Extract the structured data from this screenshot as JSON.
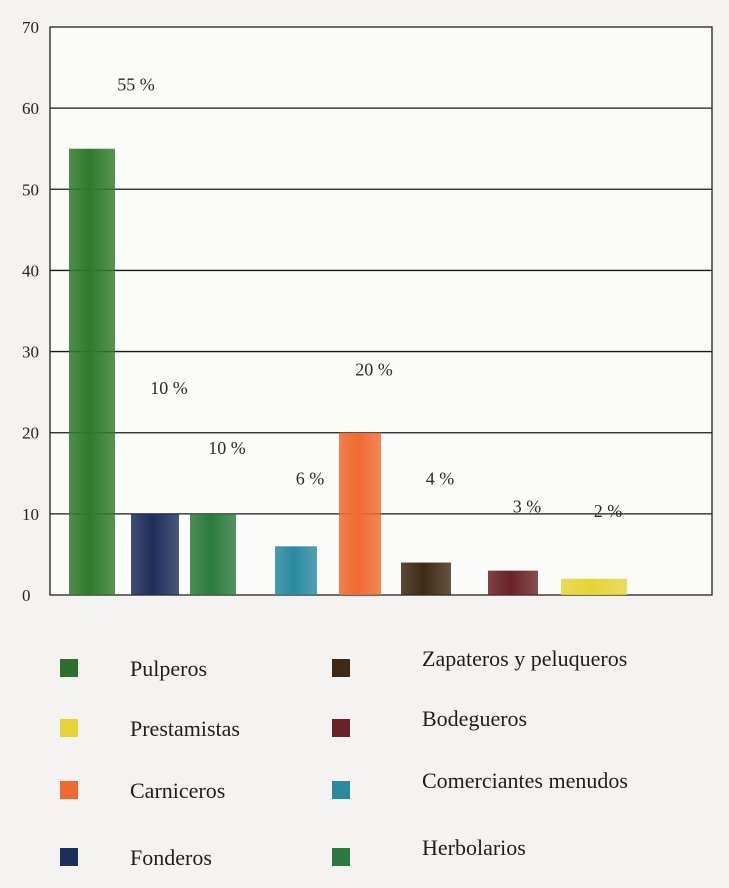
{
  "chart_data": {
    "type": "bar",
    "title": "",
    "xlabel": "",
    "ylabel": "",
    "ylim": [
      0,
      70
    ],
    "yticks": [
      0,
      10,
      20,
      30,
      40,
      50,
      60,
      70
    ],
    "grid": true,
    "legend_position": "bottom",
    "categories": [
      "Pulperos",
      "Fonderos",
      "Herbolarios",
      "Comerciantes menudos",
      "Carniceros",
      "Zapateros y peluqueros",
      "Bodegueros",
      "Prestamistas"
    ],
    "values": [
      55,
      10,
      10,
      6,
      20,
      4,
      3,
      2
    ],
    "data_labels": [
      "55 %",
      "10 %",
      "10 %",
      "6 %",
      "20 %",
      "4 %",
      "3 %",
      "2 %"
    ],
    "colors": [
      "#2f7a2c",
      "#1d2e5a",
      "#2b7a3c",
      "#2a8aa0",
      "#f06a30",
      "#3e2a14",
      "#6a2226",
      "#e6d435"
    ],
    "legend": [
      {
        "label": "Pulperos",
        "color": "#2c6e2a"
      },
      {
        "label": "Zapateros y peluqueros",
        "color": "#3e2a14"
      },
      {
        "label": "Prestamistas",
        "color": "#e6d435"
      },
      {
        "label": "Bodegueros",
        "color": "#6a2226"
      },
      {
        "label": "Carniceros",
        "color": "#f06a30"
      },
      {
        "label": "Comerciantes menudos",
        "color": "#2a8aa0"
      },
      {
        "label": "Fonderos",
        "color": "#1d2e5a"
      },
      {
        "label": "Herbolarios",
        "color": "#2b7a3c"
      }
    ]
  }
}
